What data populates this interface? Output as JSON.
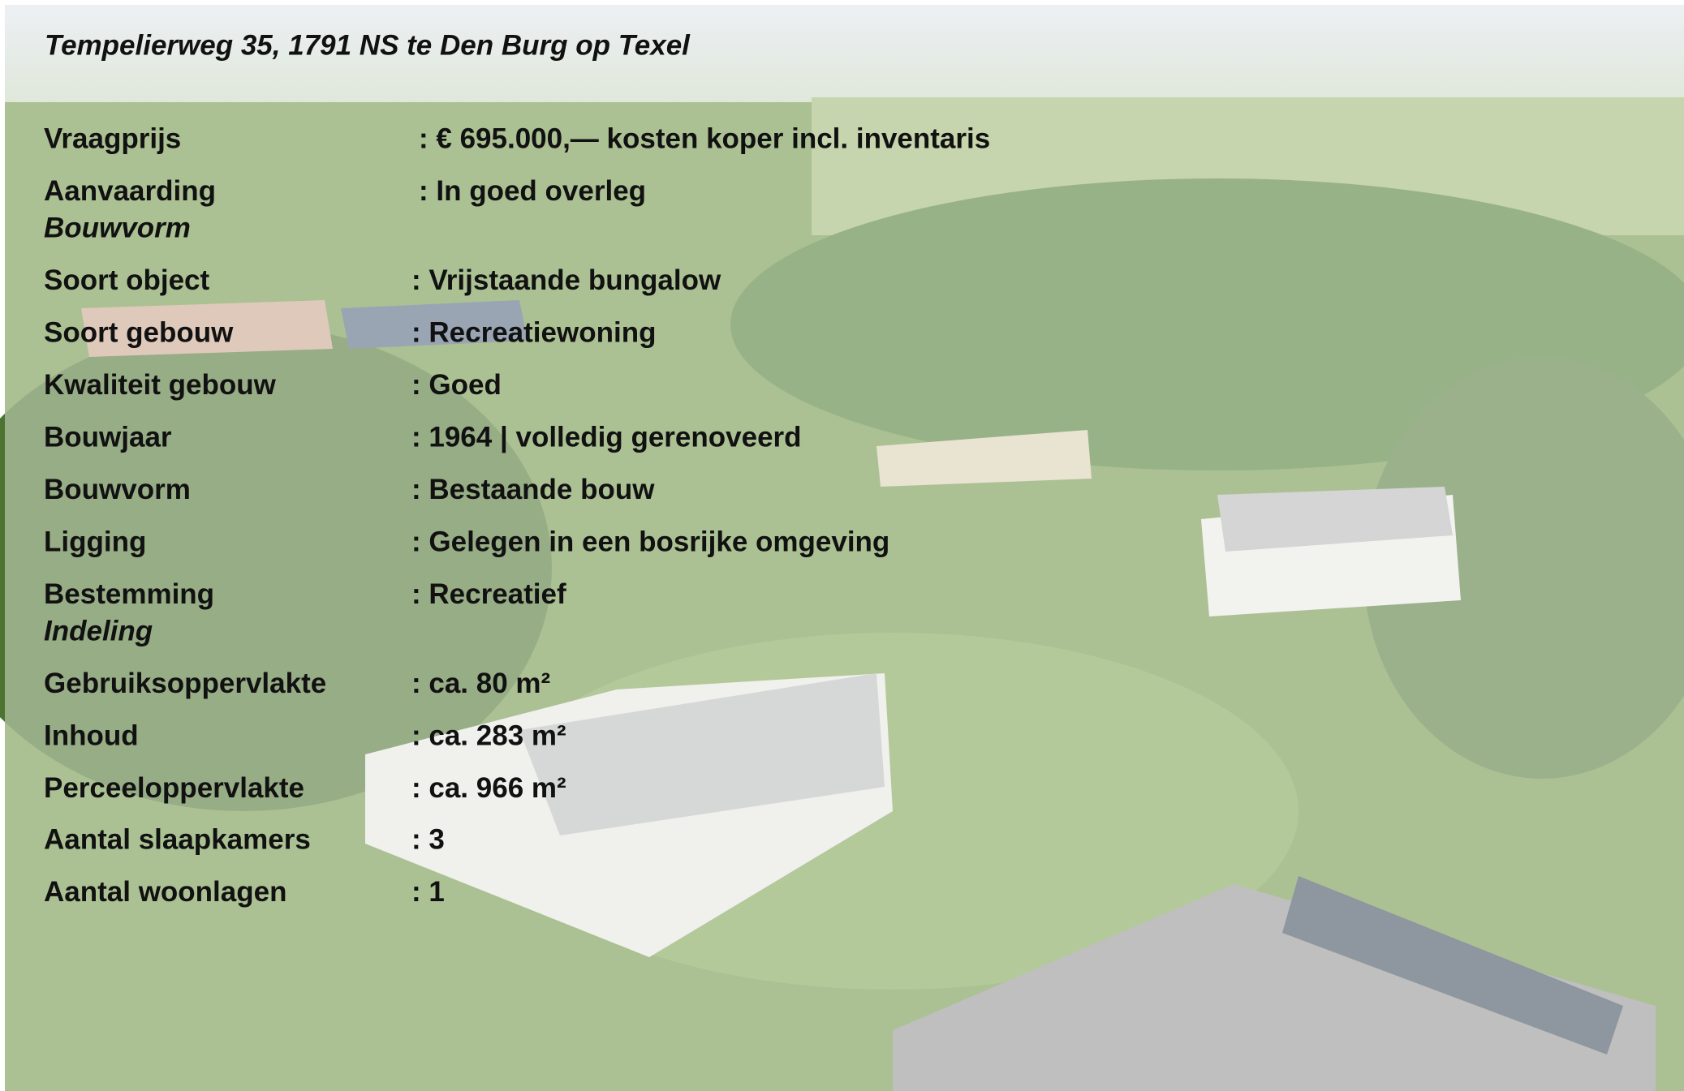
{
  "title": "Tempelierweg 35, 1791 NS te Den Burg op Texel",
  "groups": [
    {
      "rows": [
        {
          "label": "Vraagprijs",
          "value": ": € 695.000,— kosten koper incl. inventaris"
        },
        {
          "label": "Aanvaarding",
          "value": ": In goed overleg"
        }
      ]
    },
    {
      "heading": "Bouwvorm",
      "rows": [
        {
          "label": "Soort object",
          "value": ": Vrijstaande bungalow"
        },
        {
          "label": "Soort gebouw",
          "value": ": Recreatiewoning"
        },
        {
          "label": "Kwaliteit gebouw",
          "value": ": Goed"
        },
        {
          "label": "Bouwjaar",
          "value": ": 1964 | volledig gerenoveerd"
        },
        {
          "label": "Bouwvorm",
          "value": ": Bestaande bouw"
        },
        {
          "label": "Ligging",
          "value": ": Gelegen in een bosrijke omgeving"
        },
        {
          "label": "Bestemming",
          "value": ": Recreatief"
        }
      ]
    },
    {
      "heading": "Indeling",
      "rows": [
        {
          "label": "Gebruiksoppervlakte",
          "value": ": ca. 80 m²"
        },
        {
          "label": "Inhoud",
          "value": ": ca. 283 m²"
        },
        {
          "label": "Perceeloppervlakte",
          "value": ": ca. 966 m²"
        }
      ]
    },
    {
      "rows": [
        {
          "label": "Aantal slaapkamers",
          "value": ": 3"
        },
        {
          "label": "Aantal woonlagen",
          "value": ": 1"
        }
      ]
    }
  ]
}
